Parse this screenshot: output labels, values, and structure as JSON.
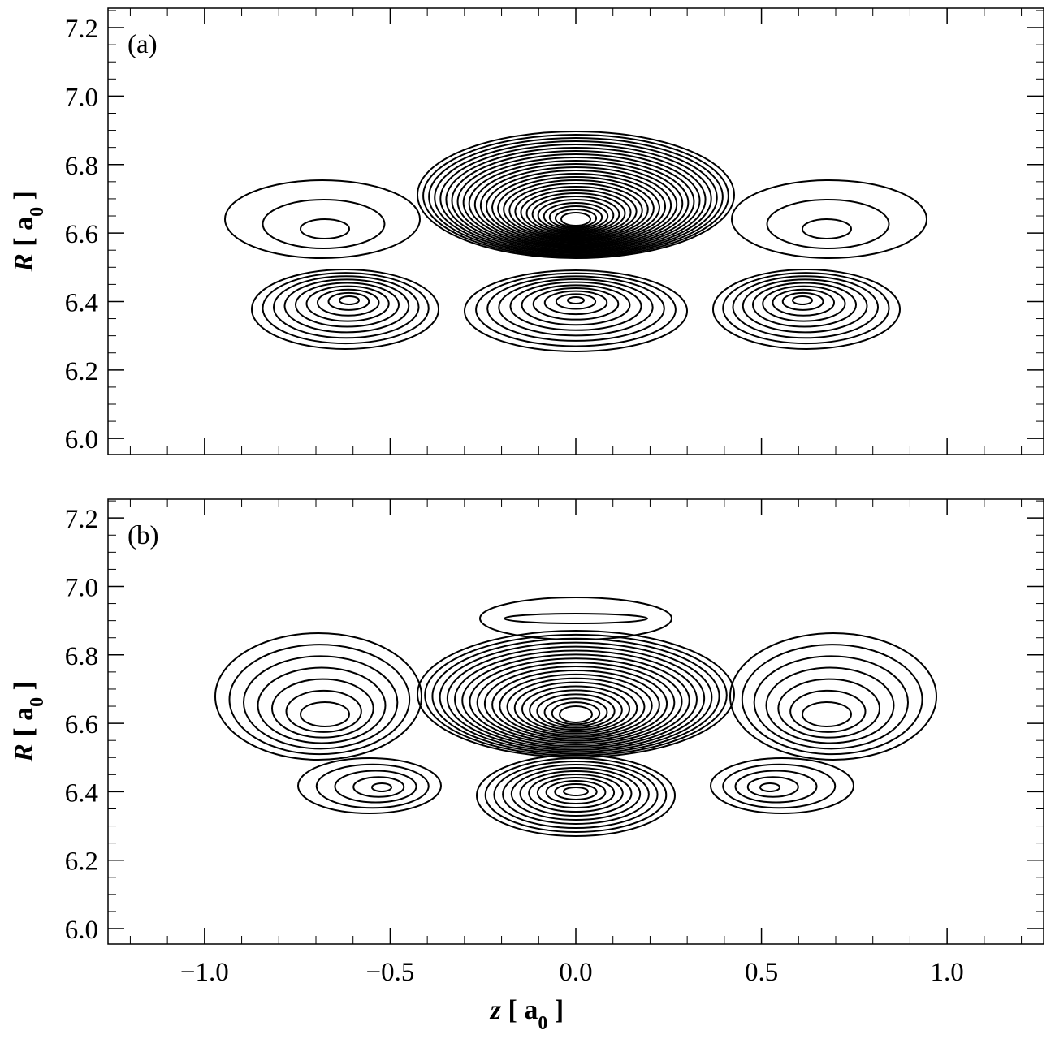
{
  "chart_data": [
    {
      "type": "contour",
      "panel_label": "(a)",
      "xlim": [
        -1.26,
        1.26
      ],
      "ylim": [
        5.953,
        7.257
      ],
      "xticks": [
        -1,
        -0.5,
        0,
        0.5,
        1
      ],
      "show_xtick_labels": false,
      "yticks": [
        {
          "value": 6,
          "label": "6.0"
        },
        6.2,
        6.4,
        6.6,
        6.8,
        {
          "value": 7,
          "label": "7.0"
        },
        7.2
      ],
      "xminorticks": [
        -1.2,
        -1.1,
        -0.9,
        -0.8,
        -0.7,
        -0.6,
        -0.4,
        -0.3,
        -0.2,
        -0.1,
        0.1,
        0.2,
        0.3,
        0.4,
        0.6,
        0.7,
        0.8,
        0.9,
        1.1,
        1.2
      ],
      "yminorticks": [
        6.05,
        6.1,
        6.15,
        6.25,
        6.3,
        6.35,
        6.45,
        6.5,
        6.55,
        6.65,
        6.7,
        6.75,
        6.85,
        6.9,
        6.95,
        7.05,
        7.1,
        7.15,
        7.25
      ],
      "ylabel": [
        "R",
        " [ a",
        "0",
        " ]"
      ]
    },
    {
      "type": "contour",
      "panel_label": "(b)",
      "xlim": [
        -1.26,
        1.26
      ],
      "ylim": [
        5.955,
        7.255
      ],
      "xticks": [
        {
          "value": -1,
          "label": "−1.0"
        },
        {
          "value": -0.5,
          "label": "−0.5"
        },
        {
          "value": 0,
          "label": "0.0"
        },
        0.5,
        {
          "value": 1,
          "label": "1.0"
        }
      ],
      "show_xtick_labels": true,
      "yticks": [
        {
          "value": 6,
          "label": "6.0"
        },
        6.2,
        6.4,
        6.6,
        6.8,
        {
          "value": 7,
          "label": "7.0"
        },
        7.2
      ],
      "xminorticks": [
        -1.2,
        -1.1,
        -0.9,
        -0.8,
        -0.7,
        -0.6,
        -0.4,
        -0.3,
        -0.2,
        -0.1,
        0.1,
        0.2,
        0.3,
        0.4,
        0.6,
        0.7,
        0.8,
        0.9,
        1.1,
        1.2
      ],
      "yminorticks": [
        6.05,
        6.1,
        6.15,
        6.25,
        6.3,
        6.35,
        6.45,
        6.5,
        6.55,
        6.65,
        6.7,
        6.75,
        6.85,
        6.9,
        6.95,
        7.05,
        7.1,
        7.15,
        7.25
      ],
      "ylabel": [
        "R",
        " [ a",
        "0",
        " ]"
      ],
      "xlabel": [
        "z",
        " [ a",
        "0",
        " ]"
      ]
    }
  ]
}
